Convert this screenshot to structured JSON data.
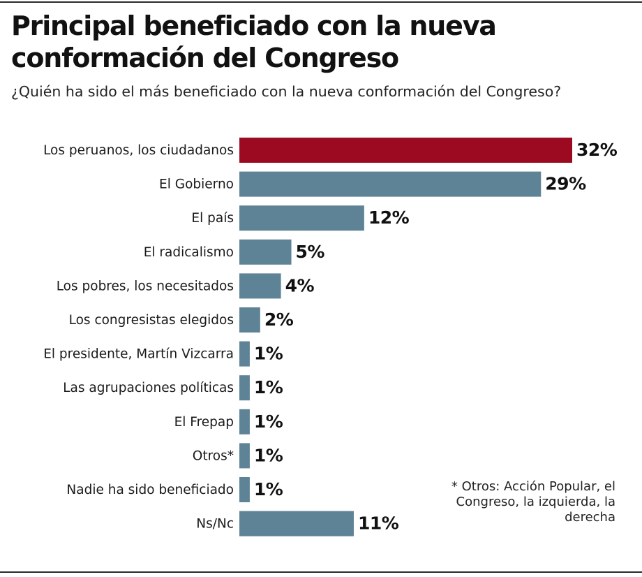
{
  "header": {
    "title": "Principal beneficiado con la nueva conformación del Congreso",
    "subtitle": "¿Quién ha sido el más beneficiado con la nueva conformación del Congreso?"
  },
  "footnote": "* Otros: Acción Popular, el Congreso, la izquierda, la derecha",
  "colors": {
    "highlight": "#9b0a20",
    "bar": "#5e8396"
  },
  "chart_data": {
    "type": "bar",
    "orientation": "horizontal",
    "title": "Principal beneficiado con la nueva conformación del Congreso",
    "subtitle": "¿Quién ha sido el más beneficiado con la nueva conformación del Congreso?",
    "unit": "%",
    "xlim": [
      0,
      32
    ],
    "categories": [
      "Los peruanos, los ciudadanos",
      "El Gobierno",
      "El país",
      "El radicalismo",
      "Los pobres, los necesitados",
      "Los congresistas elegidos",
      "El presidente, Martín Vizcarra",
      "Las agrupaciones políticas",
      "El Frepap",
      "Otros*",
      "Nadie ha sido beneficiado",
      "Ns/Nc"
    ],
    "values": [
      32,
      29,
      12,
      5,
      4,
      2,
      1,
      1,
      1,
      1,
      1,
      11
    ],
    "value_labels": [
      "32%",
      "29%",
      "12%",
      "5%",
      "4%",
      "2%",
      "1%",
      "1%",
      "1%",
      "1%",
      "1%",
      "11%"
    ],
    "highlight_index": 0
  }
}
